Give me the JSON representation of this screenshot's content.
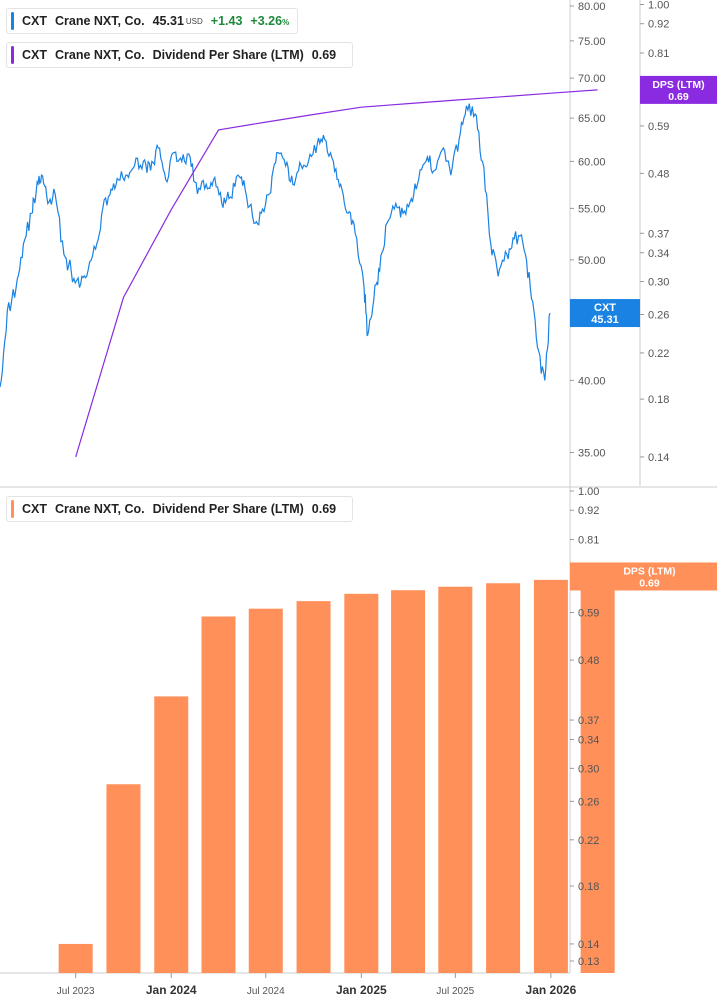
{
  "colors": {
    "price": "#1a82e2",
    "dps_line": "#8a2be2",
    "dps_bar": "#ff9059",
    "positive": "#1f8a3c"
  },
  "top_legend_price": {
    "ticker": "CXT",
    "company": "Crane NXT, Co.",
    "price": "45.31",
    "currency": "USD",
    "change": "+1.43",
    "change_pct": "+3.26",
    "pct_sign": "%"
  },
  "top_legend_dps": {
    "ticker": "CXT",
    "company": "Crane NXT, Co.",
    "metric": "Dividend Per Share (LTM)",
    "value": "0.69"
  },
  "bottom_legend": {
    "ticker": "CXT",
    "company": "Crane NXT, Co.",
    "metric": "Dividend Per Share (LTM)",
    "value": "0.69"
  },
  "badges": {
    "price_label": "CXT",
    "price_value": "45.31",
    "dps_top_label": "DPS (LTM)",
    "dps_top_value": "0.69",
    "dps_bottom_label": "DPS (LTM)",
    "dps_bottom_value": "0.69"
  },
  "chart_data": [
    {
      "type": "line",
      "series": [
        {
          "key": "price",
          "name": "Crane NXT, Co.",
          "x": [
            "2023-05-01",
            "2023-05-15",
            "2023-06-01",
            "2023-06-15",
            "2023-07-01",
            "2023-07-10",
            "2023-07-20",
            "2023-08-01",
            "2023-08-15",
            "2023-09-01",
            "2023-09-15",
            "2023-10-01",
            "2023-10-15",
            "2023-11-01",
            "2023-11-15",
            "2023-12-01",
            "2023-12-15",
            "2024-01-01",
            "2024-01-15",
            "2024-02-01",
            "2024-02-15",
            "2024-03-01",
            "2024-03-15",
            "2024-04-01",
            "2024-04-15",
            "2024-05-01",
            "2024-05-15",
            "2024-06-01",
            "2024-06-15",
            "2024-07-01",
            "2024-07-15",
            "2024-08-01",
            "2024-08-15",
            "2024-09-01",
            "2024-09-15",
            "2024-10-01",
            "2024-10-15",
            "2024-11-01",
            "2024-11-15",
            "2024-12-01",
            "2024-12-15",
            "2025-01-01",
            "2025-01-15",
            "2025-02-01",
            "2025-02-15",
            "2025-03-01",
            "2025-03-15",
            "2025-04-01",
            "2025-04-08",
            "2025-04-20",
            "2025-05-01",
            "2025-05-15",
            "2025-06-01",
            "2025-06-15",
            "2025-07-01",
            "2025-07-15",
            "2025-08-01",
            "2025-08-15",
            "2025-09-01",
            "2025-09-15",
            "2025-10-01",
            "2025-10-15",
            "2025-11-01",
            "2025-11-15",
            "2025-12-01",
            "2025-12-15",
            "2026-01-01",
            "2026-01-15",
            "2026-02-01",
            "2026-02-15",
            "2026-03-01",
            "2026-03-15",
            "2026-03-25"
          ],
          "y": [
            39.5,
            45.5,
            47.5,
            51.5,
            54.5,
            57.0,
            58.5,
            55.5,
            56.5,
            50.5,
            49.0,
            47.5,
            48.5,
            51.0,
            55.0,
            57.0,
            58.0,
            58.5,
            59.5,
            60.0,
            59.0,
            61.5,
            58.0,
            61.0,
            60.0,
            60.5,
            56.5,
            57.5,
            58.0,
            55.5,
            56.0,
            58.5,
            57.0,
            53.5,
            54.5,
            56.5,
            61.0,
            59.5,
            57.5,
            59.5,
            60.0,
            62.0,
            62.5,
            60.0,
            57.5,
            54.5,
            52.5,
            47.5,
            43.5,
            46.5,
            49.0,
            53.5,
            55.5,
            54.5,
            56.0,
            58.0,
            60.5,
            59.0,
            61.5,
            58.5,
            62.5,
            66.5,
            65.5,
            60.0,
            51.5,
            48.5,
            50.5,
            52.0,
            51.5,
            47.5,
            42.5,
            40.0,
            45.31
          ]
        },
        {
          "key": "dps_overlay",
          "name": "Dividend Per Share (LTM)",
          "x": [
            "2023-07-01",
            "2023-10-01",
            "2024-01-01",
            "2024-04-01",
            "2024-07-01",
            "2024-10-01",
            "2025-01-01",
            "2025-04-01",
            "2025-07-01",
            "2025-10-01",
            "2026-01-01",
            "2026-04-01"
          ],
          "y": [
            0.14,
            0.28,
            0.41,
            0.58,
            0.6,
            0.62,
            0.64,
            0.65,
            0.66,
            0.67,
            0.68,
            0.69
          ]
        }
      ],
      "y_ticks": [
        "35.00",
        "40.00",
        "45.00",
        "50.00",
        "55.00",
        "60.00",
        "65.00",
        "70.00",
        "75.00",
        "80.00"
      ],
      "y_ticks_right": [
        "0.13",
        "0.14",
        "0.18",
        "0.22",
        "0.26",
        "0.30",
        "0.34",
        "0.37",
        "0.48",
        "0.59",
        "0.70",
        "0.81",
        "0.92",
        "1.00"
      ],
      "ylim": [
        33,
        80
      ],
      "ylim_right": [
        0.13,
        1.0
      ],
      "grid": false
    },
    {
      "type": "bar",
      "categories": [
        "2023-07-01",
        "2023-10-01",
        "2024-01-01",
        "2024-04-01",
        "2024-07-01",
        "2024-10-01",
        "2025-01-01",
        "2025-04-01",
        "2025-07-01",
        "2025-10-01",
        "2026-01-01",
        "2026-04-01"
      ],
      "values": [
        0.14,
        0.28,
        0.41,
        0.58,
        0.6,
        0.62,
        0.64,
        0.65,
        0.66,
        0.67,
        0.68,
        0.69
      ],
      "y_ticks": [
        "0.13",
        "0.14",
        "0.18",
        "0.22",
        "0.26",
        "0.30",
        "0.34",
        "0.37",
        "0.48",
        "0.59",
        "0.70",
        "0.81",
        "0.92",
        "1.00"
      ],
      "ylim": [
        0.13,
        1.0
      ],
      "x_ticks": [
        {
          "label": "Jul 2023",
          "date": "2023-07-01",
          "bold": false
        },
        {
          "label": "Jan 2024",
          "date": "2024-01-01",
          "bold": true
        },
        {
          "label": "Jul 2024",
          "date": "2024-07-01",
          "bold": false
        },
        {
          "label": "Jan 2025",
          "date": "2025-01-01",
          "bold": true
        },
        {
          "label": "Jul 2025",
          "date": "2025-07-01",
          "bold": false
        },
        {
          "label": "Jan 2026",
          "date": "2026-01-01",
          "bold": true
        }
      ],
      "grid": false
    }
  ]
}
